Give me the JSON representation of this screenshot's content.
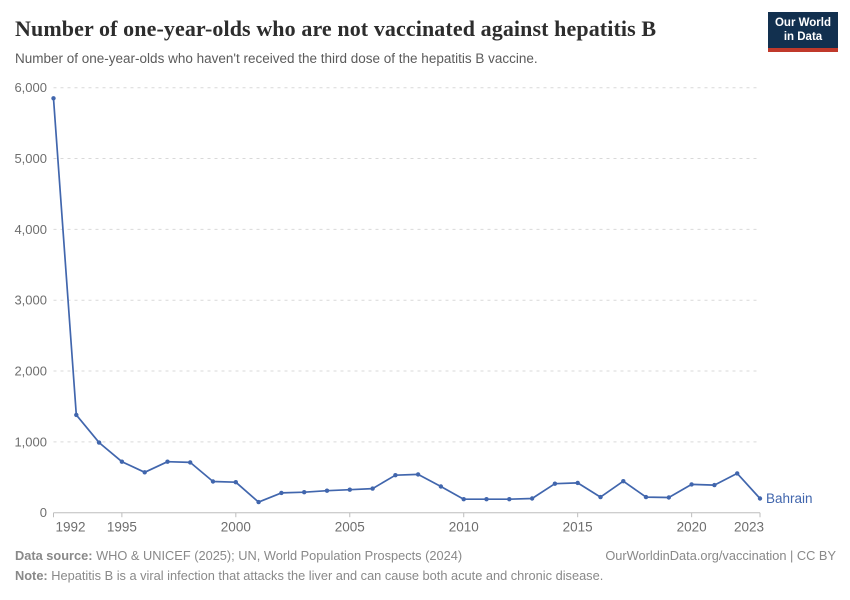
{
  "chart_data": {
    "type": "line",
    "title": "Number of one-year-olds who are not vaccinated against hepatitis B",
    "subtitle": "Number of one-year-olds who haven't received the third dose of the hepatitis B vaccine.",
    "series": [
      {
        "name": "Bahrain",
        "color": "#4166ad",
        "x": [
          1992,
          1993,
          1994,
          1995,
          1996,
          1997,
          1998,
          1999,
          2000,
          2001,
          2002,
          2003,
          2004,
          2005,
          2006,
          2007,
          2008,
          2009,
          2010,
          2011,
          2012,
          2013,
          2014,
          2015,
          2016,
          2017,
          2018,
          2019,
          2020,
          2021,
          2022,
          2023
        ],
        "values": [
          5850,
          1380,
          990,
          720,
          570,
          720,
          710,
          440,
          430,
          150,
          280,
          290,
          310,
          325,
          340,
          530,
          540,
          370,
          190,
          190,
          190,
          200,
          410,
          420,
          220,
          445,
          220,
          215,
          400,
          390,
          555,
          200
        ]
      }
    ],
    "xlabel": "",
    "ylabel": "",
    "xlim": [
      1992,
      2023
    ],
    "ylim": [
      0,
      6000
    ],
    "x_ticks": [
      1992,
      1995,
      2000,
      2005,
      2010,
      2015,
      2020,
      2023
    ],
    "y_ticks": [
      0,
      1000,
      2000,
      3000,
      4000,
      5000,
      6000
    ],
    "y_tick_labels": [
      "0",
      "1,000",
      "2,000",
      "3,000",
      "4,000",
      "5,000",
      "6,000"
    ],
    "grid": "horizontal-dashed",
    "legend_position": "entity-label-right-of-line",
    "colors": {
      "grid": "#d9d9d9",
      "axis": "#bdbdbd",
      "tick_label": "#6e6e6e"
    }
  },
  "logo": {
    "line1": "Our World",
    "line2": "in Data",
    "bg_color": "#12304f",
    "accent_color": "#c0392b"
  },
  "footer": {
    "source_label": "Data source:",
    "source_text": " WHO & UNICEF (2025); UN, World Population Prospects (2024)",
    "link_text": "OurWorldinData.org/vaccination | CC BY",
    "note_label": "Note:",
    "note_text": " Hepatitis B is a viral infection that attacks the liver and can cause both acute and chronic disease."
  }
}
